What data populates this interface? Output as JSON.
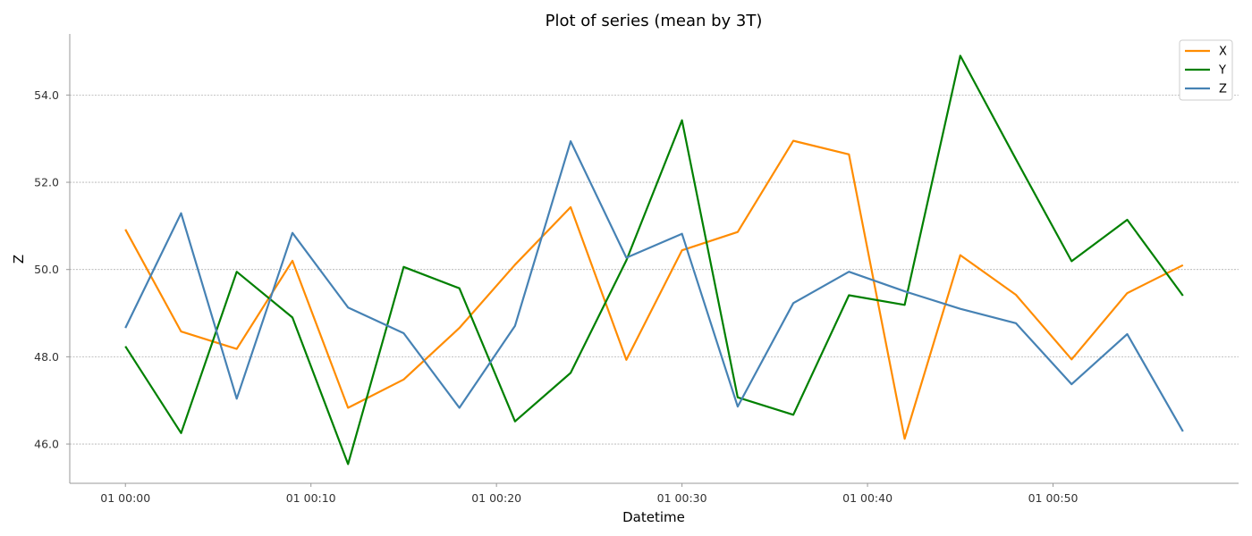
{
  "chart_data": {
    "type": "line",
    "title": "Plot of series (mean by 3T)",
    "xlabel": "Datetime",
    "ylabel": "Z",
    "x": [
      "00:00",
      "00:03",
      "00:06",
      "00:09",
      "00:12",
      "00:15",
      "00:18",
      "00:21",
      "00:24",
      "00:27",
      "00:30",
      "00:33",
      "00:36",
      "00:39",
      "00:42",
      "00:45",
      "00:48",
      "00:51",
      "00:54",
      "00:57"
    ],
    "xlim": [
      "00:-03",
      "00:60"
    ],
    "x_ticks": [
      {
        "value": "00:00",
        "label": "01 00:00"
      },
      {
        "value": "00:10",
        "label": "01 00:10"
      },
      {
        "value": "00:20",
        "label": "01 00:20"
      },
      {
        "value": "00:30",
        "label": "01 00:30"
      },
      {
        "value": "00:40",
        "label": "01 00:40"
      },
      {
        "value": "00:50",
        "label": "01 00:50"
      }
    ],
    "ylim": [
      45.1,
      55.4
    ],
    "y_ticks": [
      {
        "value": 46.0,
        "label": "46.0"
      },
      {
        "value": 48.0,
        "label": "48.0"
      },
      {
        "value": 50.0,
        "label": "50.0"
      },
      {
        "value": 52.0,
        "label": "52.0"
      },
      {
        "value": 54.0,
        "label": "54.0"
      }
    ],
    "grid": "horizontal dashed",
    "legend_position": "top-right",
    "series": [
      {
        "name": "X",
        "color": "#ff8c00",
        "values": [
          50.92,
          48.58,
          48.18,
          50.2,
          46.83,
          47.48,
          48.66,
          50.11,
          51.43,
          47.93,
          50.44,
          50.86,
          52.95,
          52.64,
          46.12,
          50.33,
          49.42,
          47.94,
          49.46,
          50.1
        ]
      },
      {
        "name": "Y",
        "color": "#008000",
        "values": [
          48.24,
          46.25,
          49.95,
          48.9,
          45.54,
          50.06,
          49.57,
          46.52,
          47.63,
          50.21,
          53.42,
          47.07,
          46.67,
          49.41,
          49.19,
          54.9,
          52.53,
          50.19,
          51.14,
          49.4
        ]
      },
      {
        "name": "Z",
        "color": "#4682b4",
        "values": [
          48.66,
          51.29,
          47.04,
          50.84,
          49.13,
          48.54,
          46.83,
          48.71,
          52.94,
          50.27,
          50.82,
          46.86,
          49.23,
          49.95,
          49.5,
          49.1,
          48.77,
          47.37,
          48.52,
          46.29
        ]
      }
    ]
  }
}
